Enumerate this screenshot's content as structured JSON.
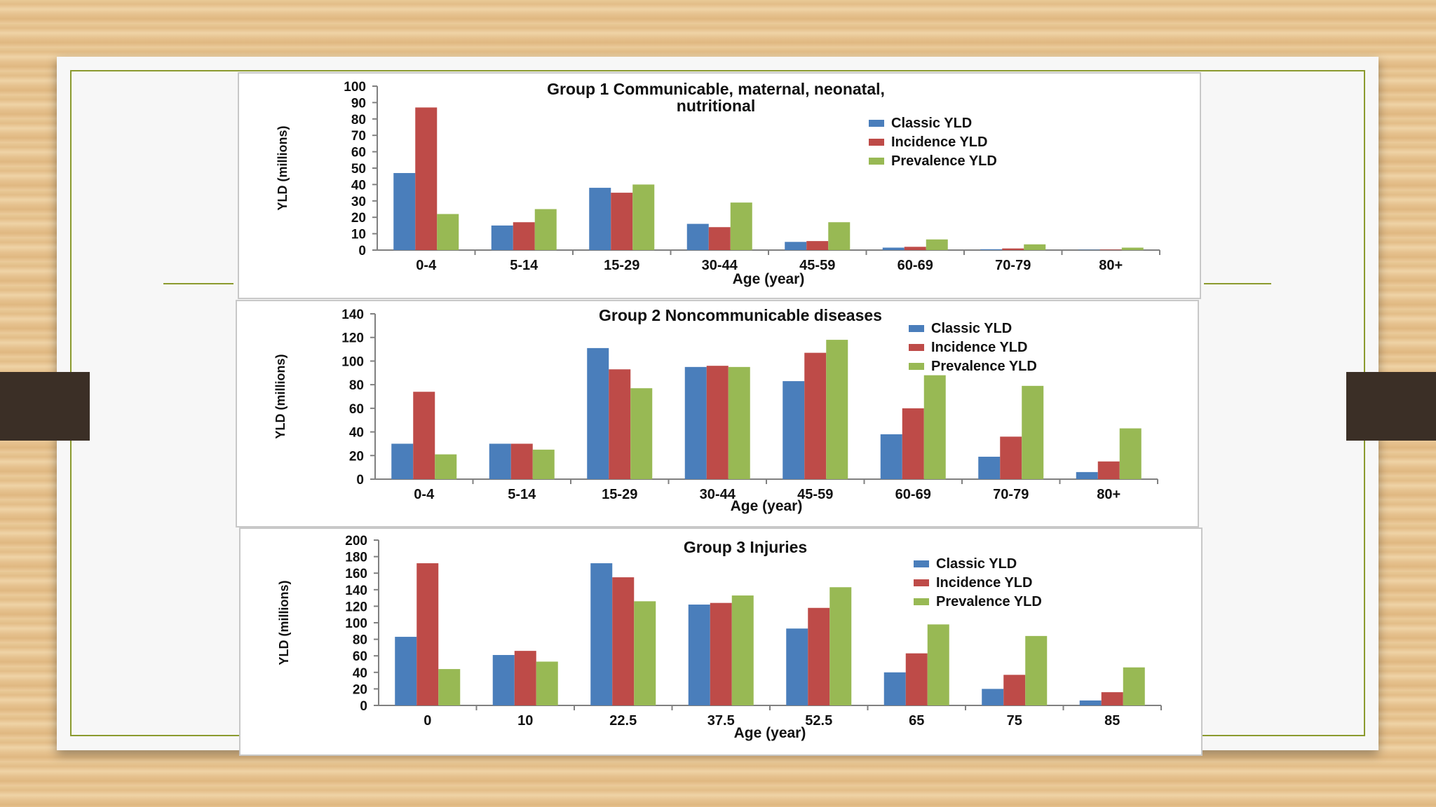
{
  "colors": {
    "classic": "#4a7ebb",
    "incidence": "#be4b48",
    "prevalence": "#98b954"
  },
  "charts": [
    {
      "id": "group1",
      "title_lines": [
        "Group 1  Communicable, maternal, neonatal,",
        "nutritional"
      ],
      "ylabel": "YLD (millions)",
      "xlabel": "Age (year)",
      "legend": [
        "Classic YLD",
        "Incidence YLD",
        "Prevalence YLD"
      ]
    },
    {
      "id": "group2",
      "title_lines": [
        "Group 2  Noncommunicable diseases"
      ],
      "ylabel": "YLD (millions)",
      "xlabel": "Age (year)",
      "legend": [
        "Classic YLD",
        "Incidence YLD",
        "Prevalence YLD"
      ]
    },
    {
      "id": "group3",
      "title_lines": [
        "Group 3  Injuries"
      ],
      "ylabel": "YLD (millions)",
      "xlabel": "Age (year)",
      "legend": [
        "Classic YLD",
        "Incidence YLD",
        "Prevalence YLD"
      ]
    }
  ],
  "chart_data": [
    {
      "type": "bar",
      "title": "Group 1  Communicable, maternal, neonatal, nutritional",
      "xlabel": "Age (year)",
      "ylabel": "YLD (millions)",
      "ylim": [
        0,
        100
      ],
      "yticks": [
        0,
        10,
        20,
        30,
        40,
        50,
        60,
        70,
        80,
        90,
        100
      ],
      "categories": [
        "0-4",
        "5-14",
        "15-29",
        "30-44",
        "45-59",
        "60-69",
        "70-79",
        "80+"
      ],
      "series": [
        {
          "name": "Classic YLD",
          "values": [
            47,
            15,
            38,
            16,
            5,
            1.5,
            0.5,
            0.2
          ]
        },
        {
          "name": "Incidence YLD",
          "values": [
            87,
            17,
            35,
            14,
            5.5,
            2,
            1,
            0.3
          ]
        },
        {
          "name": "Prevalence YLD",
          "values": [
            22,
            25,
            40,
            29,
            17,
            6.5,
            3.5,
            1.5
          ]
        }
      ]
    },
    {
      "type": "bar",
      "title": "Group 2  Noncommunicable diseases",
      "xlabel": "Age (year)",
      "ylabel": "YLD (millions)",
      "ylim": [
        0,
        140
      ],
      "yticks": [
        0,
        20,
        40,
        60,
        80,
        100,
        120,
        140
      ],
      "categories": [
        "0-4",
        "5-14",
        "15-29",
        "30-44",
        "45-59",
        "60-69",
        "70-79",
        "80+"
      ],
      "series": [
        {
          "name": "Classic YLD",
          "values": [
            30,
            30,
            111,
            95,
            83,
            38,
            19,
            6
          ]
        },
        {
          "name": "Incidence YLD",
          "values": [
            74,
            30,
            93,
            96,
            107,
            60,
            36,
            15
          ]
        },
        {
          "name": "Prevalence YLD",
          "values": [
            21,
            25,
            77,
            95,
            118,
            88,
            79,
            43
          ]
        }
      ]
    },
    {
      "type": "bar",
      "title": "Group 3  Injuries",
      "xlabel": "Age (year)",
      "ylabel": "YLD (millions)",
      "ylim": [
        0,
        200
      ],
      "yticks": [
        0,
        20,
        40,
        60,
        80,
        100,
        120,
        140,
        160,
        180,
        200
      ],
      "categories": [
        "0",
        "10",
        "22.5",
        "37.5",
        "52.5",
        "65",
        "75",
        "85"
      ],
      "series": [
        {
          "name": "Classic YLD",
          "values": [
            83,
            61,
            172,
            122,
            93,
            40,
            20,
            6
          ]
        },
        {
          "name": "Incidence YLD",
          "values": [
            172,
            66,
            155,
            124,
            118,
            63,
            37,
            16
          ]
        },
        {
          "name": "Prevalence YLD",
          "values": [
            44,
            53,
            126,
            133,
            143,
            98,
            84,
            46
          ]
        }
      ]
    }
  ]
}
